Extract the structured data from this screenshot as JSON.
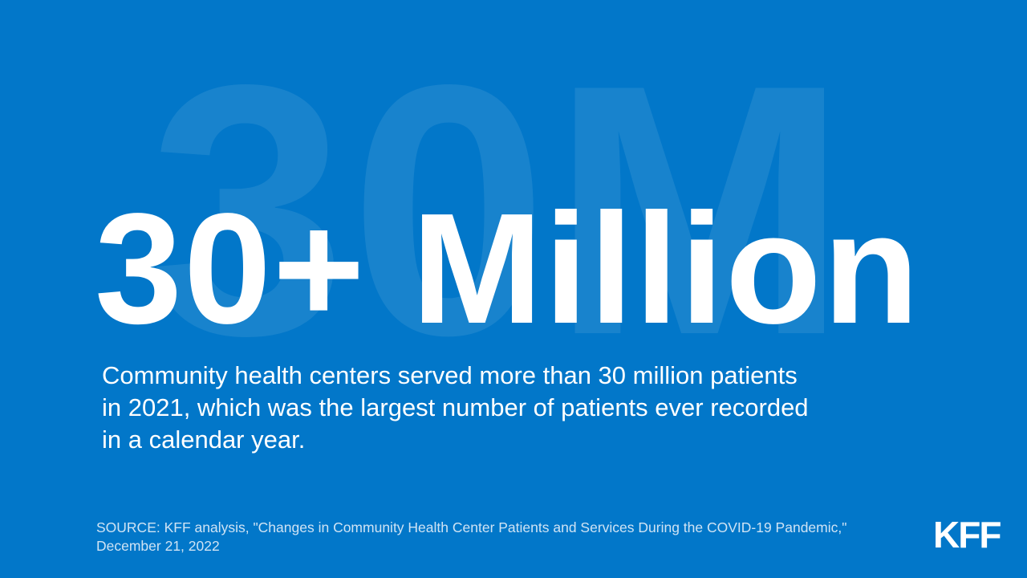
{
  "watermark": "30M",
  "headline": "30+ Million",
  "body": {
    "lines": [
      "Community health centers served more than 30 million patients",
      "in 2021, which was the largest number of patients ever recorded",
      "in a calendar year."
    ]
  },
  "source": {
    "lines": [
      "SOURCE: KFF analysis, \"Changes in Community Health Center Patients and Services During the COVID-19 Pandemic,\"",
      "December 21, 2022"
    ]
  },
  "logo": "KFF"
}
